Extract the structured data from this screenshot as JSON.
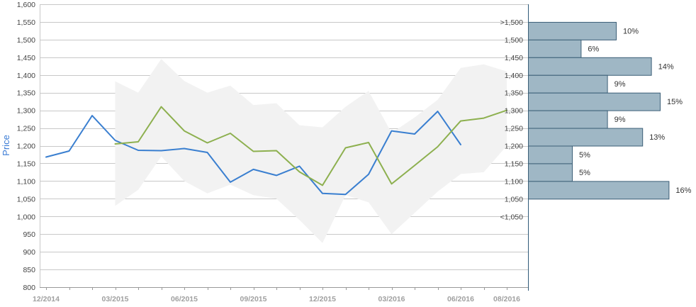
{
  "chart_data": {
    "type": "line",
    "title": "",
    "ylabel": "Price",
    "ylim": [
      800,
      1600
    ],
    "yticks": [
      800,
      850,
      900,
      950,
      1000,
      1050,
      1100,
      1150,
      1200,
      1250,
      1300,
      1350,
      1400,
      1450,
      1500,
      1550,
      1600
    ],
    "ytick_labels": [
      "800",
      "850",
      "900",
      "950",
      "1,000",
      "1,050",
      "1,100",
      "1,150",
      "1,200",
      "1,250",
      "1,300",
      "1,350",
      "1,400",
      "1,450",
      "1,500",
      "1,550",
      "1,600"
    ],
    "x_months": [
      "12/2014",
      "01/2015",
      "02/2015",
      "03/2015",
      "04/2015",
      "05/2015",
      "06/2015",
      "07/2015",
      "08/2015",
      "09/2015",
      "10/2015",
      "11/2015",
      "12/2015",
      "01/2016",
      "02/2016",
      "03/2016",
      "04/2016",
      "05/2016",
      "06/2016",
      "07/2016",
      "08/2016"
    ],
    "xtick_labels": [
      {
        "month": "12/2014",
        "label": "12/2014"
      },
      {
        "month": "03/2015",
        "label": "03/2015"
      },
      {
        "month": "06/2015",
        "label": "06/2015"
      },
      {
        "month": "09/2015",
        "label": "09/2015"
      },
      {
        "month": "12/2015",
        "label": "12/2015"
      },
      {
        "month": "03/2016",
        "label": "03/2016"
      },
      {
        "month": "06/2016",
        "label": "06/2016"
      },
      {
        "month": "08/2016",
        "label": "08/2016"
      }
    ],
    "grid": true,
    "series": [
      {
        "color": "#3a7fd0",
        "points": [
          [
            "12/2014",
            1168
          ],
          [
            "01/2015",
            1185
          ],
          [
            "02/2015",
            1285
          ],
          [
            "03/2015",
            1215
          ],
          [
            "04/2015",
            1187
          ],
          [
            "05/2015",
            1186
          ],
          [
            "06/2015",
            1192
          ],
          [
            "07/2015",
            1181
          ],
          [
            "08/2015",
            1097
          ],
          [
            "09/2015",
            1133
          ],
          [
            "10/2015",
            1116
          ],
          [
            "11/2015",
            1142
          ],
          [
            "12/2015",
            1065
          ],
          [
            "01/2016",
            1062
          ],
          [
            "02/2016",
            1119
          ],
          [
            "03/2016",
            1242
          ],
          [
            "04/2016",
            1233
          ],
          [
            "05/2016",
            1297
          ],
          [
            "06/2016",
            1203
          ]
        ]
      },
      {
        "color": "#8db04f",
        "points": [
          [
            "03/2015",
            1205
          ],
          [
            "04/2015",
            1211
          ],
          [
            "05/2015",
            1310
          ],
          [
            "06/2015",
            1242
          ],
          [
            "07/2015",
            1208
          ],
          [
            "08/2015",
            1235
          ],
          [
            "09/2015",
            1184
          ],
          [
            "10/2015",
            1186
          ],
          [
            "11/2015",
            1126
          ],
          [
            "12/2015",
            1088
          ],
          [
            "01/2016",
            1194
          ],
          [
            "02/2016",
            1209
          ],
          [
            "03/2016",
            1092
          ],
          [
            "04/2016",
            1144
          ],
          [
            "05/2016",
            1197
          ],
          [
            "06/2016",
            1270
          ],
          [
            "07/2016",
            1278
          ],
          [
            "08/2016",
            1300
          ]
        ]
      }
    ],
    "range_band": {
      "color": "#f2f2f2",
      "points": [
        [
          "03/2015",
          1030,
          1382
        ],
        [
          "04/2015",
          1075,
          1350
        ],
        [
          "05/2015",
          1170,
          1445
        ],
        [
          "06/2015",
          1100,
          1383
        ],
        [
          "07/2015",
          1065,
          1350
        ],
        [
          "08/2015",
          1090,
          1370
        ],
        [
          "09/2015",
          1060,
          1315
        ],
        [
          "10/2015",
          1050,
          1320
        ],
        [
          "11/2015",
          990,
          1258
        ],
        [
          "12/2015",
          925,
          1252
        ],
        [
          "01/2016",
          1060,
          1310
        ],
        [
          "02/2016",
          1040,
          1355
        ],
        [
          "03/2016",
          950,
          1236
        ],
        [
          "04/2016",
          1010,
          1280
        ],
        [
          "05/2016",
          1070,
          1330
        ],
        [
          "06/2016",
          1120,
          1420
        ],
        [
          "07/2016",
          1125,
          1430
        ],
        [
          "08/2016",
          1200,
          1410
        ]
      ]
    },
    "distribution": {
      "bar_color": "#9fb7c5",
      "edge_color": "#3c5f77",
      "bins": [
        {
          "label": ">1,500",
          "from": 1500,
          "to": 1550,
          "pct": 10,
          "pct_label": "10%"
        },
        {
          "label": "1,500",
          "from": 1450,
          "to": 1500,
          "pct": 6,
          "pct_label": "6%"
        },
        {
          "label": "1,450",
          "from": 1400,
          "to": 1450,
          "pct": 14,
          "pct_label": "14%"
        },
        {
          "label": "1,400",
          "from": 1350,
          "to": 1400,
          "pct": 9,
          "pct_label": "9%"
        },
        {
          "label": "1,350",
          "from": 1300,
          "to": 1350,
          "pct": 15,
          "pct_label": "15%"
        },
        {
          "label": "1,300",
          "from": 1250,
          "to": 1300,
          "pct": 9,
          "pct_label": "9%"
        },
        {
          "label": "1,250",
          "from": 1200,
          "to": 1250,
          "pct": 13,
          "pct_label": "13%"
        },
        {
          "label": "1,200",
          "from": 1150,
          "to": 1200,
          "pct": 5,
          "pct_label": "5%"
        },
        {
          "label": "1,150",
          "from": 1100,
          "to": 1150,
          "pct": 5,
          "pct_label": "5%"
        },
        {
          "label": "1,100",
          "from": 1050,
          "to": 1100,
          "pct": 16,
          "pct_label": "16%"
        }
      ],
      "extra_labels": [
        {
          "label": "1,050",
          "value": 1050
        },
        {
          "label": "<1,050",
          "value": 1000
        }
      ]
    }
  }
}
